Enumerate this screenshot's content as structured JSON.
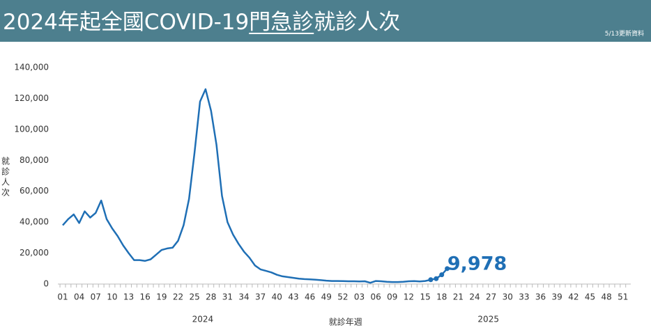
{
  "header": {
    "title_parts": [
      "2024年起全國COVID-19",
      "門急診",
      "就診人次"
    ],
    "update_note": "5/13更新資料"
  },
  "chart_data": {
    "type": "line",
    "y_label": "就診人次",
    "x_label": "就診年週",
    "year_labels": [
      "2024",
      "2025"
    ],
    "categories": [
      "01",
      null,
      null,
      "04",
      null,
      null,
      "07",
      null,
      null,
      "10",
      null,
      null,
      "13",
      null,
      null,
      "16",
      null,
      null,
      "19",
      null,
      null,
      "22",
      null,
      null,
      "25",
      null,
      null,
      "28",
      null,
      null,
      "31",
      null,
      null,
      "34",
      null,
      null,
      "37",
      null,
      null,
      "40",
      null,
      null,
      "43",
      null,
      null,
      "46",
      null,
      null,
      "49",
      null,
      null,
      "52",
      null,
      null,
      "03",
      null,
      null,
      "06",
      null,
      null,
      "09",
      null,
      null,
      "12",
      null,
      null,
      "15",
      null,
      null,
      "18",
      null,
      null,
      "21",
      null,
      null,
      "24",
      null,
      null,
      "27",
      null,
      null,
      "30",
      null,
      null,
      "33",
      null,
      null,
      "36",
      null,
      null,
      "39",
      null,
      null,
      "42",
      null,
      null,
      "45",
      null,
      null,
      "48",
      null,
      null,
      "51",
      null
    ],
    "series": [
      {
        "name": "就診人次",
        "color": "#1f6fb5",
        "values": [
          38000,
          42000,
          45000,
          39500,
          47000,
          43000,
          46000,
          54000,
          42000,
          36000,
          31000,
          25000,
          20000,
          15500,
          15500,
          15000,
          16000,
          19000,
          22000,
          23000,
          23500,
          28000,
          38000,
          55000,
          85000,
          118000,
          126000,
          112000,
          90000,
          57000,
          40000,
          32000,
          26000,
          21000,
          17000,
          12000,
          9500,
          8500,
          7500,
          6000,
          5000,
          4500,
          4000,
          3500,
          3200,
          3000,
          2800,
          2500,
          2200,
          2000,
          2000,
          1900,
          1800,
          1800,
          1700,
          1800,
          800,
          2000,
          1800,
          1500,
          1300,
          1300,
          1500,
          1800,
          1900,
          1700,
          2000,
          2800,
          3500,
          6000,
          9978,
          null,
          null,
          null,
          null,
          null,
          null,
          null,
          null,
          null,
          null,
          null,
          null,
          null,
          null,
          null,
          null,
          null,
          null,
          null,
          null,
          null,
          null,
          null,
          null,
          null,
          null,
          null,
          null,
          null,
          null,
          null,
          null,
          null
        ],
        "value_labels": [
          null,
          null,
          null,
          null,
          null,
          null,
          null,
          null,
          null,
          null,
          null,
          null,
          null,
          null,
          null,
          null,
          null,
          null,
          null,
          null,
          null,
          null,
          null,
          null,
          null,
          null,
          null,
          null,
          null,
          null,
          null,
          null,
          null,
          null,
          null,
          null,
          null,
          null,
          null,
          null,
          null,
          null,
          null,
          null,
          null,
          null,
          null,
          null,
          null,
          null,
          null,
          null,
          null,
          null,
          null,
          null,
          null,
          null,
          null,
          null,
          null,
          null,
          null,
          null,
          null,
          null,
          null,
          null,
          null,
          null,
          "9,978",
          null,
          null,
          null,
          null,
          null,
          null,
          null,
          null,
          null,
          null,
          null,
          null,
          null,
          null,
          null,
          null,
          null,
          null,
          null,
          null,
          null,
          null,
          null,
          null,
          null,
          null,
          null,
          null,
          null,
          null,
          null,
          null,
          null
        ]
      }
    ],
    "ylim": [
      0,
      140000
    ],
    "yticks": [
      0,
      {
        "value": 20000,
        "label": "20,000"
      },
      {
        "value": 40000,
        "label": "40,000"
      },
      {
        "value": 60000,
        "label": "60,000"
      },
      {
        "value": 80000,
        "label": "80,000"
      },
      {
        "value": 100000,
        "label": "100,000"
      },
      {
        "value": 120000,
        "label": "120,000"
      },
      {
        "value": 140000,
        "label": "140,000"
      }
    ],
    "grid": false
  }
}
